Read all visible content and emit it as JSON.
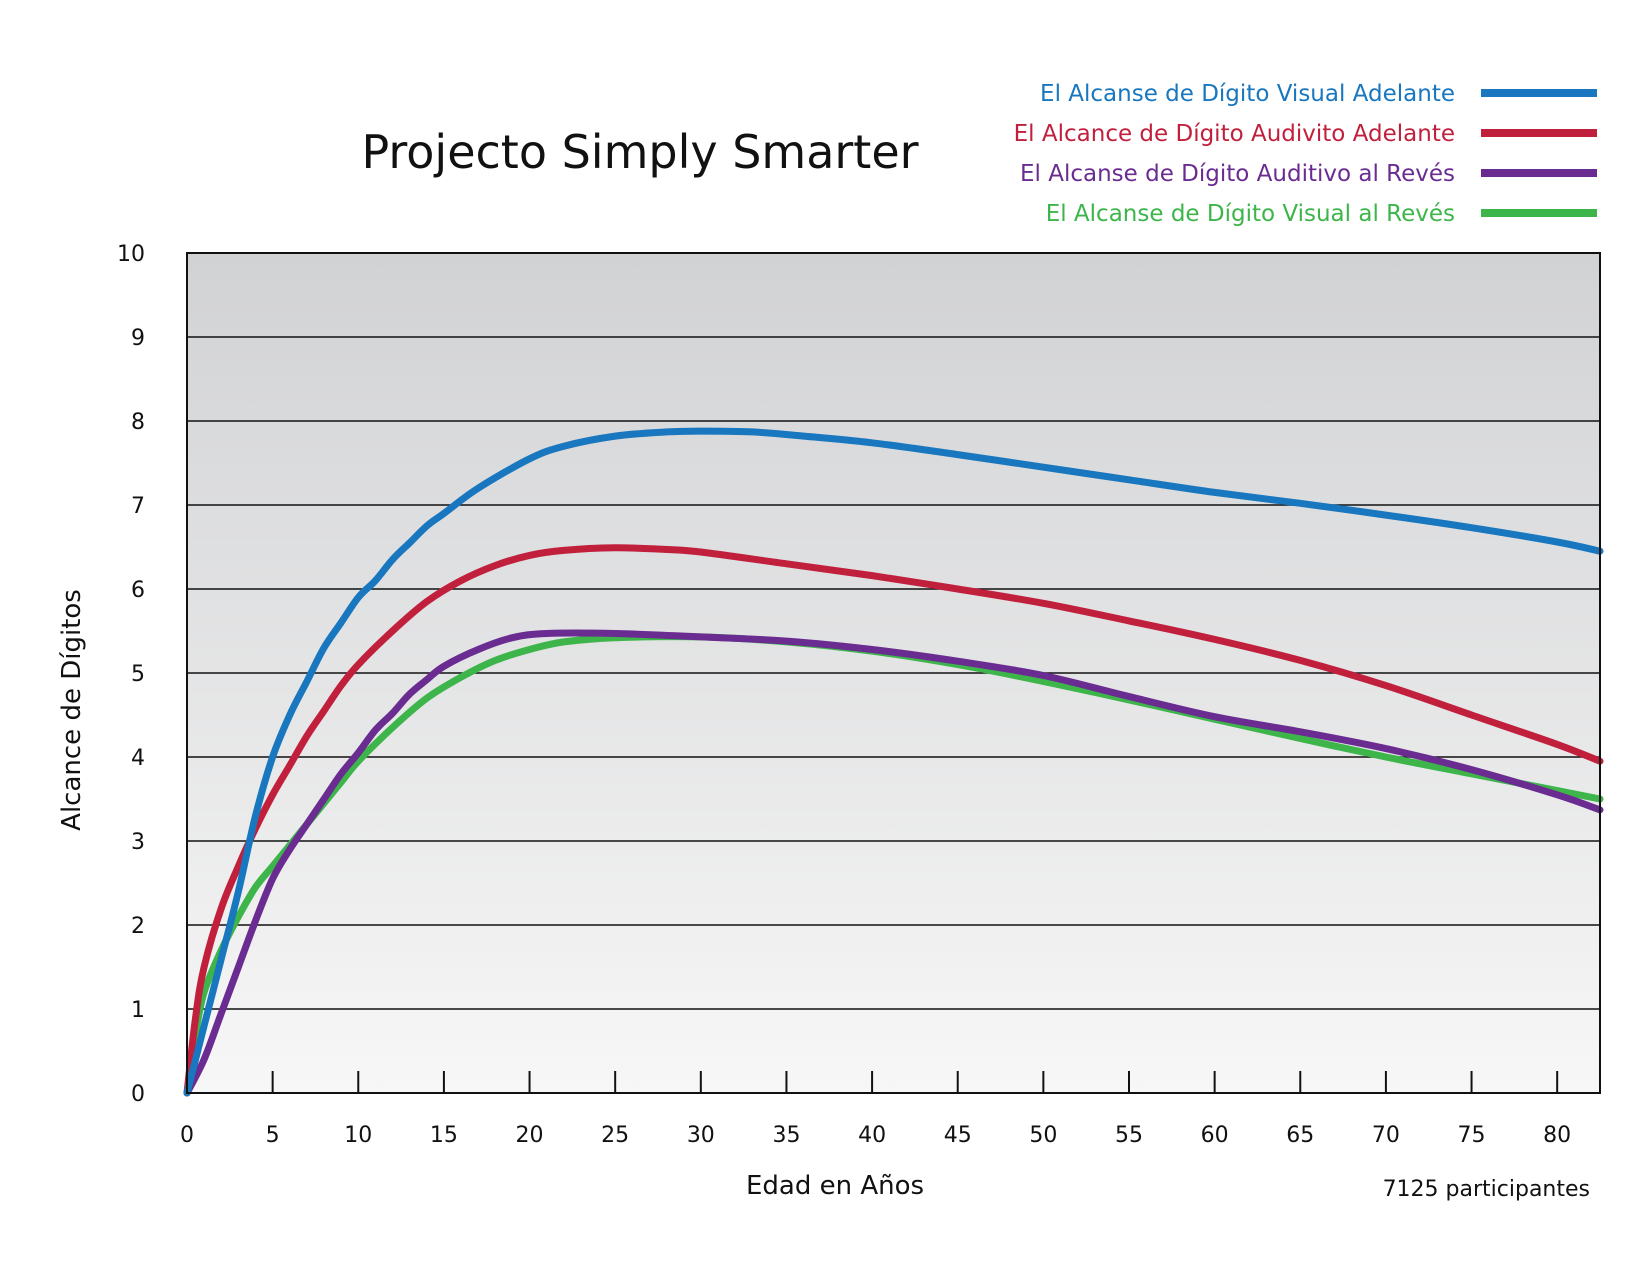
{
  "chart_data": {
    "type": "line",
    "title": "Projecto Simply Smarter",
    "xlabel": "Edad en Años",
    "ylabel": "Alcance de Dígitos",
    "note": "7125 participantes",
    "xlim": [
      0,
      82.5
    ],
    "ylim": [
      0,
      10
    ],
    "xticks": [
      0,
      5,
      10,
      15,
      20,
      25,
      30,
      35,
      40,
      45,
      50,
      55,
      60,
      65,
      70,
      75,
      80
    ],
    "yticks": [
      0,
      1,
      2,
      3,
      4,
      5,
      6,
      7,
      8,
      9,
      10
    ],
    "grid": "horizontal",
    "legend_position": "top-right",
    "background_gradient": [
      "#d1d2d4",
      "#f7f7f7"
    ],
    "series": [
      {
        "name": "El Alcanse de Dígito Visual Adelante",
        "color": "#1877be",
        "points": [
          [
            0,
            0
          ],
          [
            1,
            0.8
          ],
          [
            2,
            1.6
          ],
          [
            3,
            2.4
          ],
          [
            4,
            3.3
          ],
          [
            5,
            4.0
          ],
          [
            6,
            4.5
          ],
          [
            7,
            4.9
          ],
          [
            8,
            5.3
          ],
          [
            9,
            5.6
          ],
          [
            10,
            5.9
          ],
          [
            11,
            6.1
          ],
          [
            12,
            6.35
          ],
          [
            13,
            6.55
          ],
          [
            14,
            6.75
          ],
          [
            15,
            6.9
          ],
          [
            17,
            7.2
          ],
          [
            20,
            7.55
          ],
          [
            22,
            7.7
          ],
          [
            25,
            7.82
          ],
          [
            28,
            7.87
          ],
          [
            30,
            7.88
          ],
          [
            33,
            7.87
          ],
          [
            36,
            7.82
          ],
          [
            40,
            7.74
          ],
          [
            45,
            7.6
          ],
          [
            50,
            7.45
          ],
          [
            55,
            7.3
          ],
          [
            60,
            7.15
          ],
          [
            65,
            7.02
          ],
          [
            70,
            6.88
          ],
          [
            75,
            6.73
          ],
          [
            80,
            6.56
          ],
          [
            82.5,
            6.45
          ]
        ]
      },
      {
        "name": "El Alcance de Dígito Audivito Adelante",
        "color": "#c1203d",
        "points": [
          [
            0,
            0
          ],
          [
            0.5,
            0.9
          ],
          [
            1,
            1.5
          ],
          [
            2,
            2.2
          ],
          [
            3,
            2.7
          ],
          [
            4,
            3.15
          ],
          [
            5,
            3.55
          ],
          [
            6,
            3.9
          ],
          [
            7,
            4.25
          ],
          [
            8,
            4.55
          ],
          [
            9,
            4.85
          ],
          [
            10,
            5.1
          ],
          [
            12,
            5.5
          ],
          [
            14,
            5.85
          ],
          [
            16,
            6.1
          ],
          [
            18,
            6.28
          ],
          [
            20,
            6.4
          ],
          [
            22,
            6.46
          ],
          [
            25,
            6.49
          ],
          [
            28,
            6.47
          ],
          [
            30,
            6.44
          ],
          [
            35,
            6.3
          ],
          [
            40,
            6.16
          ],
          [
            45,
            6.0
          ],
          [
            50,
            5.83
          ],
          [
            55,
            5.62
          ],
          [
            60,
            5.4
          ],
          [
            65,
            5.15
          ],
          [
            70,
            4.85
          ],
          [
            75,
            4.5
          ],
          [
            80,
            4.15
          ],
          [
            82.5,
            3.95
          ]
        ]
      },
      {
        "name": "El Alcanse de Dígito Auditivo al Revés",
        "color": "#6a2c91",
        "points": [
          [
            0,
            0
          ],
          [
            1,
            0.4
          ],
          [
            2,
            0.95
          ],
          [
            3,
            1.5
          ],
          [
            4,
            2.05
          ],
          [
            5,
            2.55
          ],
          [
            6,
            2.9
          ],
          [
            7,
            3.2
          ],
          [
            8,
            3.5
          ],
          [
            9,
            3.8
          ],
          [
            10,
            4.05
          ],
          [
            11,
            4.32
          ],
          [
            12,
            4.52
          ],
          [
            13,
            4.75
          ],
          [
            14,
            4.92
          ],
          [
            15,
            5.08
          ],
          [
            17,
            5.28
          ],
          [
            19,
            5.42
          ],
          [
            21,
            5.47
          ],
          [
            25,
            5.47
          ],
          [
            30,
            5.43
          ],
          [
            35,
            5.38
          ],
          [
            40,
            5.28
          ],
          [
            45,
            5.14
          ],
          [
            50,
            4.97
          ],
          [
            55,
            4.72
          ],
          [
            60,
            4.48
          ],
          [
            65,
            4.3
          ],
          [
            70,
            4.1
          ],
          [
            75,
            3.85
          ],
          [
            80,
            3.55
          ],
          [
            82.5,
            3.37
          ]
        ]
      },
      {
        "name": "El Alcanse de Dígito Visual al Revés",
        "color": "#3db54a",
        "points": [
          [
            0,
            0
          ],
          [
            0.5,
            0.7
          ],
          [
            1,
            1.2
          ],
          [
            2,
            1.7
          ],
          [
            3,
            2.1
          ],
          [
            4,
            2.45
          ],
          [
            5,
            2.7
          ],
          [
            6,
            2.95
          ],
          [
            7,
            3.2
          ],
          [
            8,
            3.45
          ],
          [
            9,
            3.7
          ],
          [
            10,
            3.95
          ],
          [
            12,
            4.35
          ],
          [
            14,
            4.7
          ],
          [
            16,
            4.95
          ],
          [
            18,
            5.15
          ],
          [
            20,
            5.28
          ],
          [
            22,
            5.37
          ],
          [
            25,
            5.42
          ],
          [
            30,
            5.43
          ],
          [
            35,
            5.37
          ],
          [
            40,
            5.26
          ],
          [
            45,
            5.1
          ],
          [
            50,
            4.9
          ],
          [
            55,
            4.68
          ],
          [
            60,
            4.45
          ],
          [
            65,
            4.22
          ],
          [
            70,
            4.0
          ],
          [
            75,
            3.8
          ],
          [
            80,
            3.6
          ],
          [
            82.5,
            3.5
          ]
        ]
      }
    ]
  }
}
